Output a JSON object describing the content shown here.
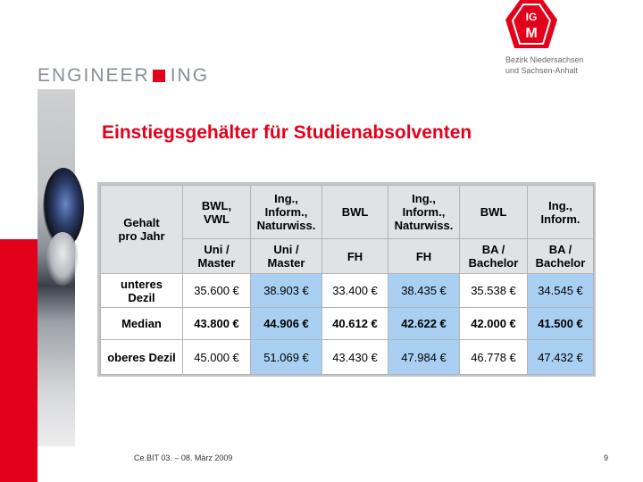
{
  "logo": {
    "left": "ENGINEER",
    "right": "ING"
  },
  "igm_logo": {
    "icon": "ig-metall-logo",
    "text_top": "IG",
    "text_main": "M"
  },
  "region": {
    "line1": "Bezirk Niedersachsen",
    "line2": "und Sachsen-Anhalt"
  },
  "title": "Einstiegsgehälter für Studienabsolventen",
  "table": {
    "corner": [
      "Gehalt",
      "pro Jahr"
    ],
    "headers": [
      [
        "BWL,",
        "VWL"
      ],
      [
        "Ing.,",
        "Inform.,",
        "Naturwiss."
      ],
      [
        "BWL"
      ],
      [
        "Ing.,",
        "Inform.,",
        "Naturwiss."
      ],
      [
        "BWL"
      ],
      [
        "Ing.,",
        "Inform."
      ]
    ],
    "subheaders": [
      [
        "Uni /",
        "Master"
      ],
      [
        "Uni /",
        "Master"
      ],
      [
        "FH"
      ],
      [
        "FH"
      ],
      [
        "BA /",
        "Bachelor"
      ],
      [
        "BA /",
        "Bachelor"
      ]
    ],
    "rows": [
      {
        "label": [
          "unteres",
          "Dezil"
        ],
        "values": [
          "35.600 €",
          "38.903 €",
          "33.400 €",
          "38.435 €",
          "35.538 €",
          "34.545 €"
        ],
        "bold": false
      },
      {
        "label": [
          "Median"
        ],
        "values": [
          "43.800 €",
          "44.906 €",
          "40.612 €",
          "42.622 €",
          "42.000 €",
          "41.500 €"
        ],
        "bold": true
      },
      {
        "label": [
          "oberes Dezil"
        ],
        "values": [
          "45.000 €",
          "51.069 €",
          "43.430 €",
          "47.984 €",
          "46.778 €",
          "47.432 €"
        ],
        "bold": false
      }
    ],
    "colors": {
      "highlight": "#a9d0f3",
      "header": "#e1e2e4"
    }
  },
  "footer": "Ce.BIT 03. – 08. März 2009",
  "page_number": "9"
}
